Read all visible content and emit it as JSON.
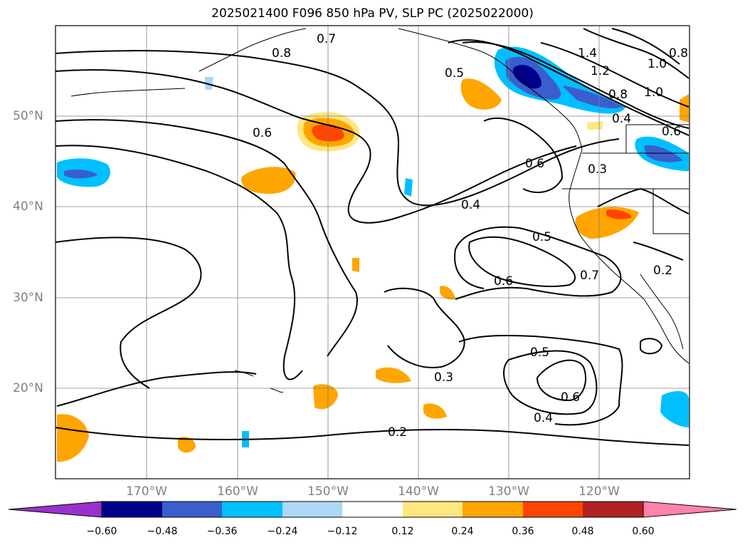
{
  "title": "2025021400 F096 850 hPa PV, SLP PC (2025022000)",
  "map": {
    "projection": "PlateCarree",
    "lon_range": [
      -180,
      -110
    ],
    "lat_range": [
      10,
      60
    ],
    "lat_labels": [
      "50°N",
      "40°N",
      "30°N",
      "20°N"
    ],
    "lon_labels": [
      "170°W",
      "160°W",
      "150°W",
      "140°W",
      "130°W",
      "120°W"
    ],
    "gridlines": true,
    "gridline_color": "#808080"
  },
  "contour_labels": [
    "0.7",
    "0.8",
    "0.5",
    "1.4",
    "1.2",
    "1.0",
    "0.8",
    "0.6",
    "0.4",
    "1.0",
    "0.8",
    "0.6",
    "0.6",
    "0.3",
    "0.4",
    "0.5",
    "0.7",
    "0.6",
    "0.2",
    "0.5",
    "0.3",
    "0.6",
    "0.4",
    "0.2"
  ],
  "colorbar": {
    "ticks": [
      "−0.60",
      "−0.48",
      "−0.36",
      "−0.24",
      "−0.12",
      "0.12",
      "0.24",
      "0.36",
      "0.48",
      "0.60"
    ],
    "colors": [
      "#9932cc",
      "#00008b",
      "#3a5fcd",
      "#00bfff",
      "#add8f5",
      "#ffffff",
      "#ffe680",
      "#ffa500",
      "#ff4500",
      "#b22222",
      "#ff82ab"
    ],
    "extend": "both"
  },
  "colors": {
    "negative_strong": "#00008b",
    "negative_mid": "#3a5fcd",
    "negative_light": "#00bfff",
    "negative_faint": "#add8f5",
    "positive_faint": "#ffe680",
    "positive_light": "#ffa500",
    "positive_mid": "#ff4500"
  }
}
